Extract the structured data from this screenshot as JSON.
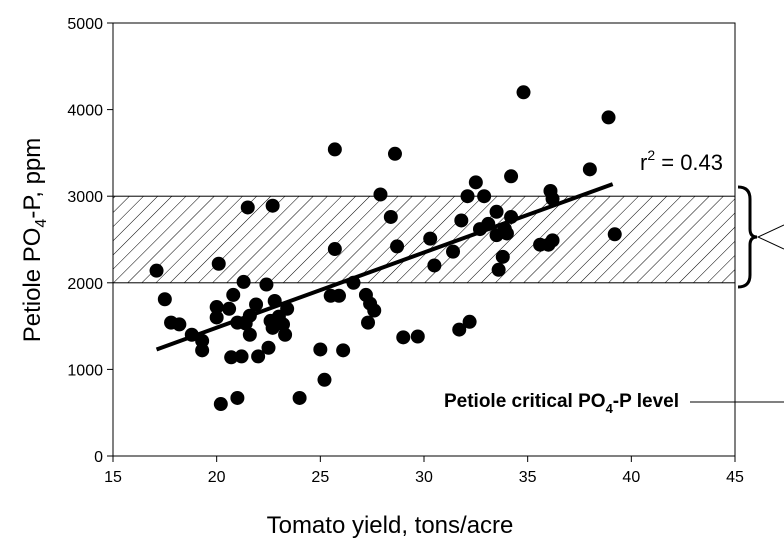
{
  "chart_data": {
    "type": "scatter",
    "x_label": "Tomato yield, tons/acre",
    "y_label": [
      "Petiole PO",
      "4",
      "-P, ppm"
    ],
    "xlim": [
      15,
      45
    ],
    "xticks": [
      15,
      20,
      25,
      30,
      35,
      40,
      45
    ],
    "ylim": [
      0,
      5000
    ],
    "yticks": [
      0,
      1000,
      2000,
      3000,
      4000,
      5000
    ],
    "grid": false,
    "color": "#000000",
    "band": [
      2000,
      3000
    ],
    "trendline": {
      "x": [
        17.1,
        39.1
      ],
      "y": [
        1230,
        3140
      ]
    },
    "r2_label": [
      "r",
      "2",
      " = 0.43"
    ],
    "annotation": [
      "Petiole critical PO",
      "4",
      "-P level"
    ],
    "x": [
      17.1,
      17.5,
      17.8,
      18.2,
      18.8,
      19.3,
      19.3,
      20.0,
      20.0,
      20.1,
      20.2,
      20.6,
      20.7,
      20.8,
      21.0,
      21.0,
      21.2,
      21.3,
      21.4,
      21.5,
      21.6,
      21.6,
      21.9,
      22.0,
      22.4,
      22.5,
      22.6,
      22.7,
      22.7,
      22.8,
      23.0,
      23.2,
      23.3,
      23.4,
      24.0,
      25.0,
      25.2,
      25.5,
      25.7,
      25.7,
      25.9,
      26.1,
      26.6,
      27.2,
      27.3,
      27.4,
      27.6,
      27.9,
      28.4,
      28.6,
      28.7,
      29.0,
      29.7,
      30.3,
      30.5,
      31.4,
      31.7,
      31.8,
      32.1,
      32.2,
      32.5,
      32.7,
      32.9,
      33.1,
      33.5,
      33.5,
      33.6,
      33.8,
      33.9,
      34.0,
      34.2,
      34.2,
      34.8,
      35.6,
      36.0,
      36.1,
      36.2,
      36.2,
      38.0,
      38.9,
      39.2
    ],
    "values": [
      2140,
      1810,
      1540,
      1520,
      1400,
      1330,
      1220,
      1720,
      1600,
      2220,
      600,
      1700,
      1140,
      1860,
      670,
      1540,
      1150,
      2010,
      1530,
      2870,
      1620,
      1400,
      1750,
      1150,
      1980,
      1250,
      1560,
      2890,
      1480,
      1790,
      1610,
      1520,
      1400,
      1700,
      670,
      1230,
      880,
      1850,
      2390,
      3540,
      1850,
      1220,
      2000,
      1860,
      1540,
      1760,
      1680,
      3020,
      2760,
      3490,
      2420,
      1370,
      1380,
      2510,
      2200,
      2360,
      1460,
      2720,
      3000,
      1550,
      3160,
      2620,
      3000,
      2680,
      2820,
      2550,
      2150,
      2300,
      2620,
      2570,
      2760,
      3230,
      4200,
      2440,
      2440,
      3060,
      2970,
      2490,
      3310,
      3910,
      2560
    ]
  }
}
